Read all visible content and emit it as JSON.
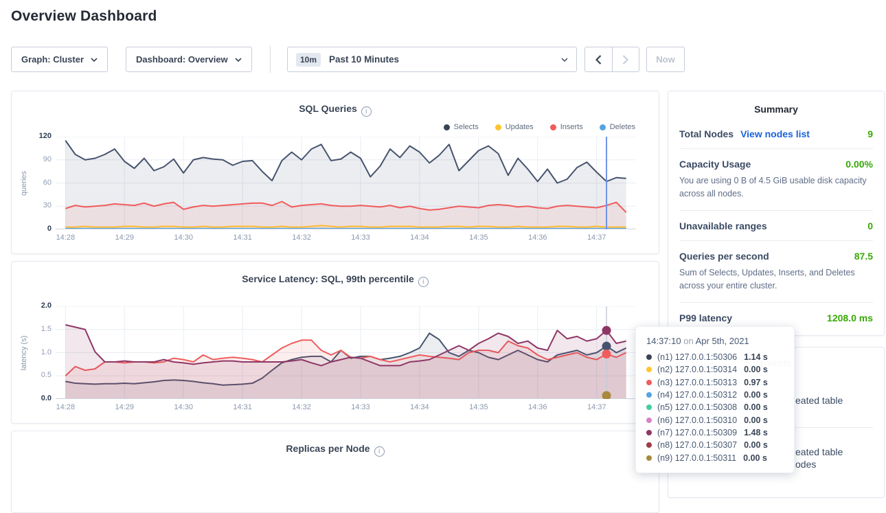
{
  "page": {
    "title": "Overview Dashboard"
  },
  "controls": {
    "graph_dropdown": "Graph: Cluster",
    "dashboard_dropdown": "Dashboard: Overview",
    "time_badge": "10m",
    "time_label": "Past 10 Minutes",
    "now_button": "Now"
  },
  "summary": {
    "title": "Summary",
    "rows": [
      {
        "label": "Total Nodes",
        "link": "View nodes list",
        "value": "9"
      },
      {
        "label": "Capacity Usage",
        "value": "0.00%",
        "desc": "You are using 0 B of 4.5 GiB usable disk capacity across all nodes."
      },
      {
        "label": "Unavailable ranges",
        "value": "0"
      },
      {
        "label": "Queries per second",
        "value": "87.5",
        "desc": "Sum of Selects, Updates, Inserts, and Deletes across your entire cluster."
      },
      {
        "label": "P99 latency",
        "value": "1208.0 ms"
      }
    ]
  },
  "events": {
    "title": "Events",
    "items": [
      {
        "line1": "eated table",
        "line2": ""
      },
      {
        "line1": "eated table",
        "line2": "odes"
      }
    ]
  },
  "tooltip": {
    "time": "14:37:10",
    "conj": "on",
    "date": "Apr 5th, 2021",
    "rows": [
      {
        "dot": "#394455",
        "label": "(n1) 127.0.0.1:50306",
        "value": "1.14 s"
      },
      {
        "dot": "#ffc531",
        "label": "(n2) 127.0.0.1:50314",
        "value": "0.00 s"
      },
      {
        "dot": "#f05c5c",
        "label": "(n3) 127.0.0.1:50313",
        "value": "0.97 s"
      },
      {
        "dot": "#55a3e0",
        "label": "(n4) 127.0.0.1:50312",
        "value": "0.00 s"
      },
      {
        "dot": "#41cf9c",
        "label": "(n5) 127.0.0.1:50308",
        "value": "0.00 s"
      },
      {
        "dot": "#d683c8",
        "label": "(n6) 127.0.0.1:50310",
        "value": "0.00 s"
      },
      {
        "dot": "#8e3666",
        "label": "(n7) 127.0.0.1:50309",
        "value": "1.48 s"
      },
      {
        "dot": "#a03b49",
        "label": "(n8) 127.0.0.1:50307",
        "value": "0.00 s"
      },
      {
        "dot": "#a98a3d",
        "label": "(n9) 127.0.0.1:50311",
        "value": "0.00 s"
      }
    ]
  },
  "chart_data": [
    {
      "type": "line",
      "name": "sql-queries",
      "title": "SQL Queries",
      "xlabel": "",
      "ylabel": "queries",
      "ylim": [
        0,
        120
      ],
      "yticks": [
        "0",
        "30",
        "60",
        "90",
        "120"
      ],
      "x_labels": [
        "14:28",
        "14:29",
        "14:30",
        "14:31",
        "14:32",
        "14:33",
        "14:34",
        "14:35",
        "14:36",
        "14:37"
      ],
      "points": 58,
      "legend_position": "top-right",
      "grid": true,
      "series": [
        {
          "name": "Selects",
          "color": "#46536e",
          "fill_opacity": 0.1,
          "values": [
            115,
            97,
            90,
            92,
            97,
            104,
            88,
            79,
            92,
            76,
            81,
            91,
            73,
            90,
            93,
            91,
            90,
            83,
            88,
            89,
            75,
            63,
            89,
            100,
            90,
            104,
            110,
            89,
            91,
            100,
            92,
            68,
            82,
            104,
            93,
            108,
            100,
            86,
            96,
            110,
            76,
            89,
            102,
            108,
            98,
            70,
            92,
            78,
            62,
            78,
            60,
            65,
            80,
            87,
            74,
            62,
            67,
            66
          ]
        },
        {
          "name": "Updates",
          "color": "#ffc531",
          "fill_opacity": 0.15,
          "values": [
            3,
            3,
            4,
            3,
            3,
            3,
            4,
            4,
            3,
            3,
            4,
            4,
            3,
            3,
            4,
            3,
            3,
            4,
            4,
            4,
            3,
            3,
            4,
            3,
            3,
            4,
            5,
            4,
            3,
            4,
            4,
            3,
            3,
            4,
            4,
            4,
            3,
            3,
            3,
            4,
            4,
            3,
            4,
            4,
            3,
            3,
            4,
            3,
            3,
            3,
            4,
            4,
            3,
            3,
            4,
            3,
            3,
            3
          ]
        },
        {
          "name": "Inserts",
          "color": "#f05c5c",
          "fill_opacity": 0.09,
          "values": [
            27,
            31,
            29,
            30,
            31,
            33,
            32,
            31,
            34,
            30,
            33,
            35,
            26,
            29,
            31,
            30,
            31,
            32,
            33,
            34,
            34,
            31,
            36,
            29,
            31,
            32,
            33,
            31,
            30,
            30,
            31,
            30,
            29,
            31,
            28,
            30,
            27,
            25,
            26,
            28,
            30,
            29,
            28,
            31,
            32,
            31,
            29,
            30,
            28,
            27,
            30,
            31,
            30,
            29,
            28,
            31,
            35,
            22
          ]
        },
        {
          "name": "Deletes",
          "color": "#55a3e0",
          "fill_opacity": 0.2,
          "flat": 1
        }
      ],
      "hover": {
        "index": 55,
        "color": "#7092e6",
        "width": 2
      }
    },
    {
      "type": "line",
      "name": "service-latency",
      "title": "Service Latency: SQL, 99th percentile",
      "xlabel": "",
      "ylabel": "latency (s)",
      "ylim": [
        0,
        2
      ],
      "yticks": [
        "0.0",
        "0.5",
        "1.0",
        "1.5",
        "2.0"
      ],
      "x_labels": [
        "14:28",
        "14:29",
        "14:30",
        "14:31",
        "14:32",
        "14:33",
        "14:34",
        "14:35",
        "14:36",
        "14:37"
      ],
      "points": 58,
      "grid": true,
      "series": [
        {
          "name": "n1",
          "color": "#46536e",
          "fill_opacity": 0.1,
          "values": [
            0.38,
            0.34,
            0.33,
            0.32,
            0.33,
            0.33,
            0.34,
            0.33,
            0.35,
            0.37,
            0.4,
            0.41,
            0.4,
            0.38,
            0.35,
            0.33,
            0.3,
            0.31,
            0.32,
            0.34,
            0.45,
            0.62,
            0.78,
            0.85,
            0.9,
            0.92,
            0.92,
            0.8,
            1.05,
            0.88,
            0.92,
            0.92,
            0.85,
            0.88,
            0.92,
            1.0,
            1.1,
            1.42,
            1.28,
            1.0,
            0.92,
            1.05,
            1.0,
            0.9,
            0.85,
            0.95,
            1.05,
            0.95,
            0.85,
            0.8,
            0.95,
            1.0,
            1.05,
            0.95,
            1.0,
            1.14,
            1.0,
            1.1
          ]
        },
        {
          "name": "n2",
          "color": "#ffc531",
          "fill_opacity": 0.08,
          "flat": 0
        },
        {
          "name": "n3",
          "color": "#f05c5c",
          "fill_opacity": 0.1,
          "values": [
            0.5,
            0.7,
            0.62,
            0.65,
            0.8,
            0.8,
            0.78,
            0.8,
            0.8,
            0.78,
            0.8,
            0.88,
            0.85,
            0.8,
            0.95,
            0.85,
            0.88,
            0.9,
            0.88,
            0.85,
            0.8,
            0.95,
            1.1,
            1.2,
            1.27,
            1.27,
            1.05,
            0.95,
            1.05,
            0.9,
            0.88,
            0.92,
            0.85,
            0.8,
            0.85,
            0.9,
            0.95,
            0.92,
            0.9,
            0.88,
            0.85,
            1.0,
            1.05,
            1.05,
            1.0,
            1.25,
            1.15,
            1.1,
            0.95,
            0.85,
            0.9,
            0.95,
            1.0,
            0.9,
            0.85,
            0.97,
            0.9,
            1.0
          ]
        },
        {
          "name": "n4",
          "color": "#55a3e0",
          "fill_opacity": 0.08,
          "flat": 0
        },
        {
          "name": "n5",
          "color": "#41cf9c",
          "fill_opacity": 0.08,
          "flat": 0
        },
        {
          "name": "n6",
          "color": "#d683c8",
          "fill_opacity": 0.08,
          "flat": 0
        },
        {
          "name": "n7",
          "color": "#8e3666",
          "fill_opacity": 0.12,
          "values": [
            1.6,
            1.55,
            1.5,
            1.02,
            0.8,
            0.8,
            0.82,
            0.8,
            0.8,
            0.8,
            0.85,
            0.8,
            0.78,
            0.75,
            0.78,
            0.8,
            0.82,
            0.82,
            0.8,
            0.8,
            0.8,
            0.8,
            0.8,
            0.82,
            0.85,
            0.78,
            0.72,
            0.8,
            0.85,
            0.9,
            0.88,
            0.8,
            0.72,
            0.72,
            0.72,
            0.8,
            0.82,
            0.85,
            0.95,
            1.05,
            1.15,
            1.05,
            1.2,
            1.3,
            1.42,
            1.35,
            1.2,
            1.25,
            1.1,
            1.05,
            1.48,
            1.3,
            1.35,
            1.25,
            1.3,
            1.48,
            1.2,
            1.25
          ]
        },
        {
          "name": "n8",
          "color": "#a03b49",
          "fill_opacity": 0.08,
          "flat": 0
        },
        {
          "name": "n9",
          "color": "#a98a3d",
          "fill_opacity": 0.08,
          "flat": 0
        }
      ],
      "hover": {
        "index": 55,
        "color": "#c6ccd6",
        "width": 1.5,
        "markers": [
          "n7",
          "n1",
          "n3",
          "n9"
        ]
      }
    },
    {
      "type": "line",
      "name": "replicas-per-node",
      "title": "Replicas per Node",
      "series": []
    }
  ]
}
